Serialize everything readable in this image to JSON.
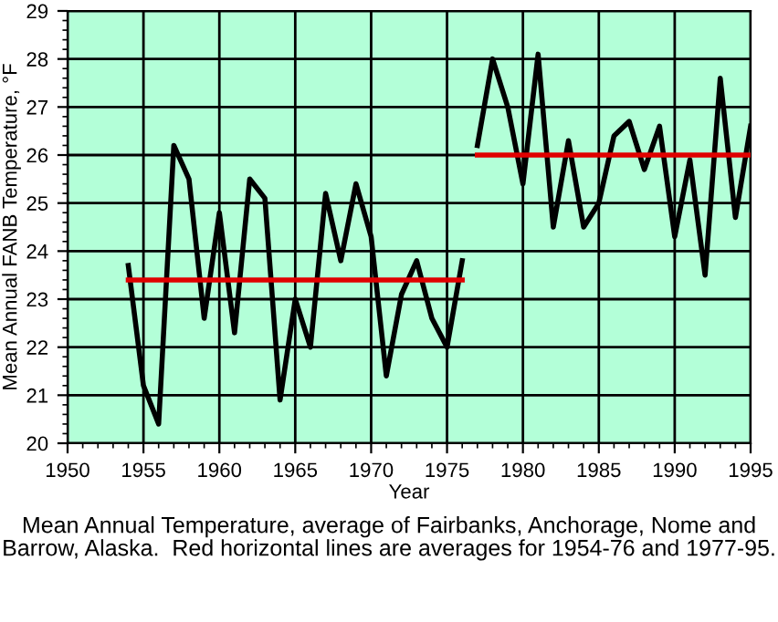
{
  "chart_data": {
    "type": "line",
    "xlabel": "Year",
    "ylabel": "Mean Annual FANB Temperature, °F",
    "annotations": [
      "Mean Annual Temperature, average of Fairbanks, Anchorage, Nome and Barrow, Alaska.  Red horizontal lines are averages for 1954-76 and 1977-95."
    ],
    "series": [
      {
        "color": "#000000",
        "x": [
          1954,
          1955,
          1956,
          1957,
          1958,
          1959,
          1960,
          1961,
          1962,
          1963,
          1964,
          1965,
          1966,
          1967,
          1968,
          1969,
          1970,
          1971,
          1972,
          1973,
          1974,
          1975,
          1976
        ],
        "values": [
          23.7,
          21.2,
          20.4,
          26.2,
          25.5,
          22.6,
          24.8,
          22.3,
          25.5,
          25.1,
          20.9,
          23.0,
          22.0,
          25.2,
          23.8,
          25.4,
          24.3,
          21.4,
          23.1,
          23.8,
          22.6,
          22.0,
          23.8
        ]
      },
      {
        "color": "#000000",
        "x": [
          1977,
          1978,
          1979,
          1980,
          1981,
          1982,
          1983,
          1984,
          1985,
          1986,
          1987,
          1988,
          1989,
          1990,
          1991,
          1992,
          1993,
          1994,
          1995
        ],
        "values": [
          26.2,
          28.0,
          27.0,
          25.4,
          28.1,
          24.5,
          26.3,
          24.5,
          25.0,
          26.4,
          26.7,
          25.7,
          26.6,
          24.3,
          25.9,
          23.5,
          27.6,
          24.7,
          26.6
        ]
      },
      {
        "color": "#e00000",
        "x": [
          1954,
          1976
        ],
        "values": [
          23.4,
          23.4
        ]
      },
      {
        "color": "#e00000",
        "x": [
          1977,
          1995
        ],
        "values": [
          26.0,
          26.0
        ]
      }
    ],
    "xlim": [
      1950,
      1995
    ],
    "xticks": [
      1950,
      1955,
      1960,
      1965,
      1970,
      1975,
      1980,
      1985,
      1990,
      1995
    ],
    "ylim": [
      20,
      29
    ],
    "yticks": [
      20,
      21,
      22,
      23,
      24,
      25,
      26,
      27,
      28,
      29
    ],
    "grid": true,
    "marker": "none",
    "line_style": "solid"
  }
}
